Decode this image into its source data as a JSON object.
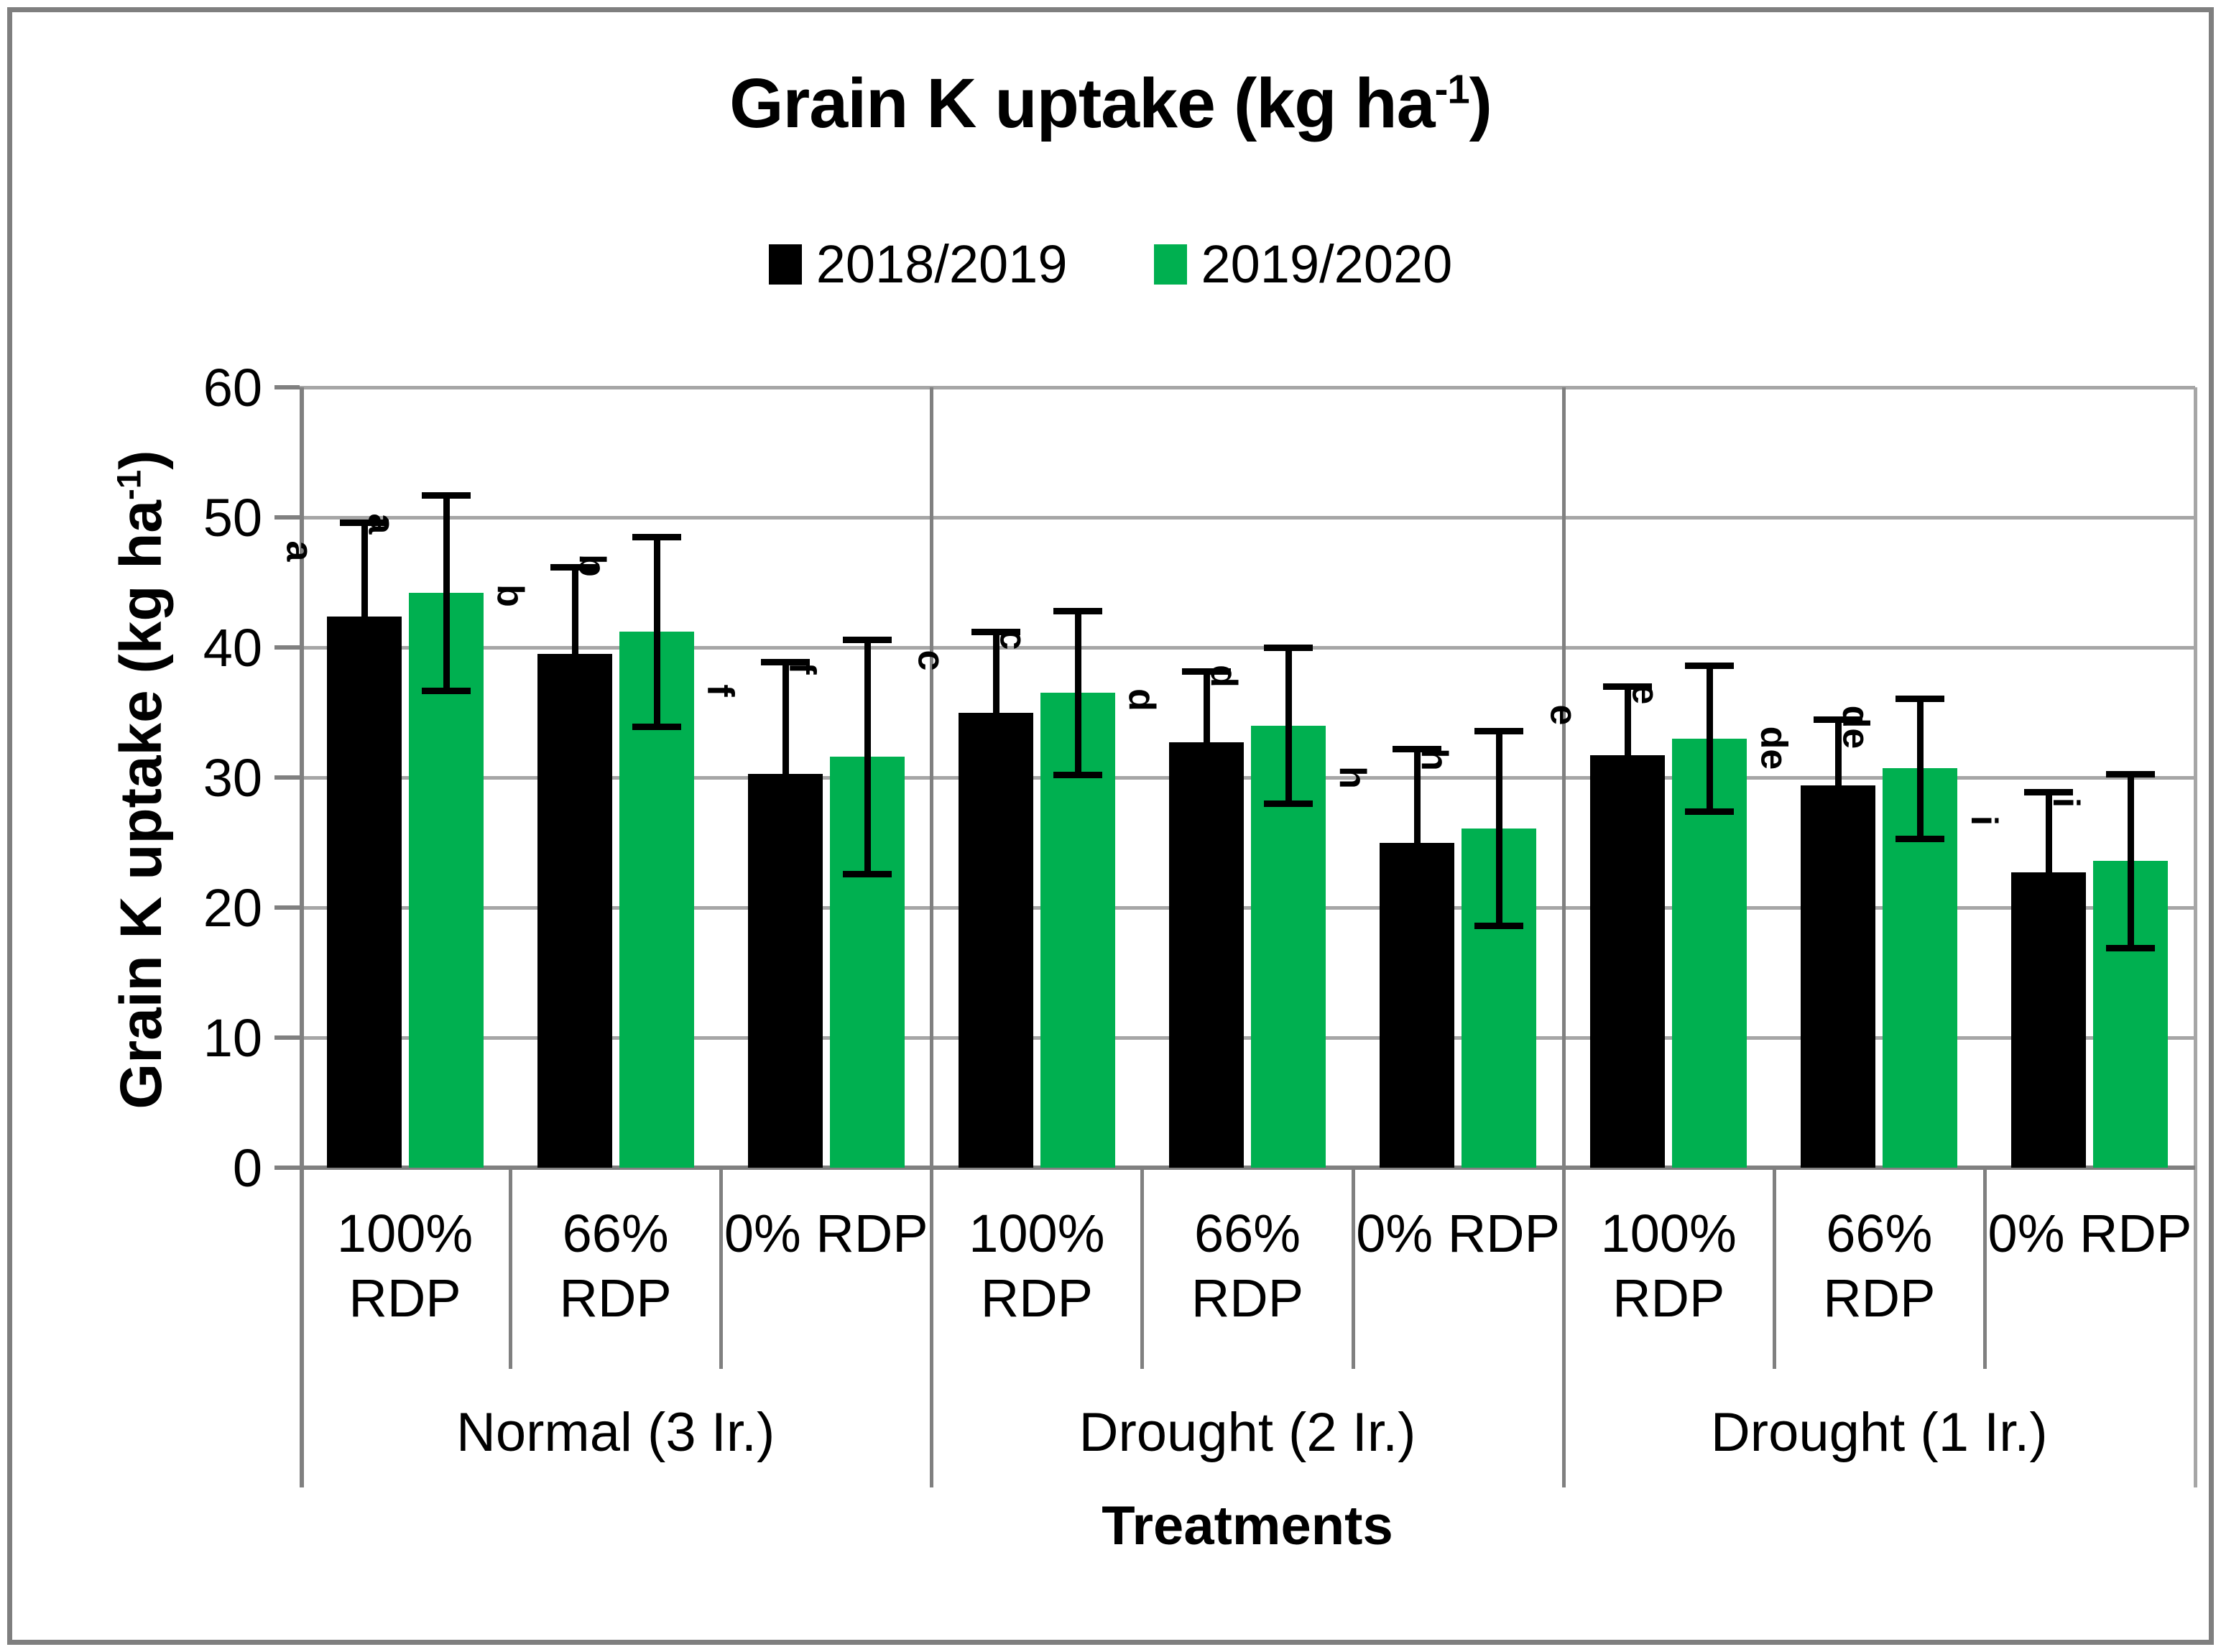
{
  "frame": {
    "border_color": "#7f7f7f"
  },
  "chart_data": {
    "type": "bar",
    "title": {
      "main": "Grain K uptake (kg ha",
      "sup": "-1",
      "end": ")"
    },
    "ylabel": {
      "main": "Grain K uptake (kg ha",
      "sup": "-1",
      "end": ")"
    },
    "xlabel": "Treatments",
    "ylim": [
      0,
      60
    ],
    "yticks": [
      0,
      10,
      20,
      30,
      40,
      50,
      60
    ],
    "grid": "horizontal gridlines every 10",
    "legend_position": "top-center",
    "categories": [
      "100%\nRDP",
      "66%\nRDP",
      "0% RDP",
      "100%\nRDP",
      "66%\nRDP",
      "0% RDP",
      "100%\nRDP",
      "66%\nRDP",
      "0% RDP"
    ],
    "group_labels": [
      "Normal (3 Ir.)",
      "Drought (2 Ir.)",
      "Drought (1 Ir.)"
    ],
    "series": [
      {
        "name": "2018/2019",
        "color": "#000000",
        "values": [
          42.4,
          39.5,
          30.3,
          35.0,
          32.7,
          25.0,
          31.7,
          29.4,
          22.7
        ],
        "errors": [
          7.2,
          6.7,
          8.6,
          6.2,
          5.5,
          7.2,
          5.3,
          5.1,
          6.2
        ],
        "letters": [
          "a",
          "b",
          "f",
          "c",
          "d",
          "h",
          "e",
          "de",
          "i"
        ]
      },
      {
        "name": "2019/2020",
        "color": "#00B050",
        "values": [
          44.2,
          41.2,
          31.6,
          36.5,
          34.0,
          26.1,
          33.0,
          30.7,
          23.6
        ],
        "errors": [
          7.5,
          7.3,
          9.0,
          6.3,
          6.0,
          7.5,
          5.6,
          5.4,
          6.7
        ],
        "letters": [
          "a",
          "b",
          "f",
          "c",
          "d",
          "h",
          "e",
          "de",
          "i"
        ]
      }
    ]
  }
}
